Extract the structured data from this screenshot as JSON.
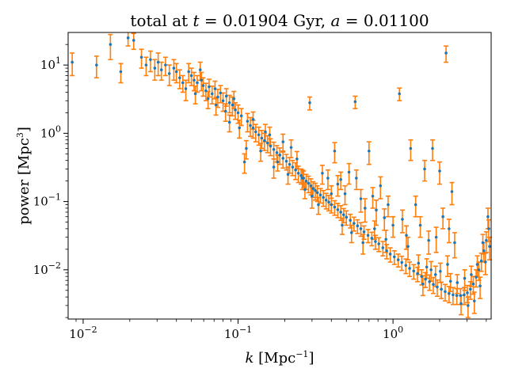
{
  "chart_data": {
    "type": "scatter",
    "title": "total at t = 0.01904 Gyr, a = 0.01100",
    "title_parts": {
      "prefix": "total at ",
      "t_sym": "t",
      "t_val": " = 0.01904 Gyr, ",
      "a_sym": "a",
      "a_val": " = 0.01100"
    },
    "xlabel": {
      "sym": "k",
      "unit": " [Mpc",
      "exp": "−1",
      "close": "]"
    },
    "ylabel": {
      "text": "power [Mpc",
      "exp": "3",
      "close": "]"
    },
    "x_scale": "log",
    "y_scale": "log",
    "xlim": [
      0.008,
      4.3
    ],
    "ylim": [
      0.0019,
      30
    ],
    "x_ticks": [
      {
        "value": 0.01,
        "base": "10",
        "exp": "−2"
      },
      {
        "value": 0.1,
        "base": "10",
        "exp": "−1"
      },
      {
        "value": 1,
        "base": "10",
        "exp": "0"
      }
    ],
    "y_ticks": [
      {
        "value": 0.01,
        "base": "10",
        "exp": "−2"
      },
      {
        "value": 0.1,
        "base": "10",
        "exp": "−1"
      },
      {
        "value": 1,
        "base": "10",
        "exp": "0"
      },
      {
        "value": 10,
        "base": "10",
        "exp": "1"
      }
    ],
    "grid": false,
    "colors": {
      "points": "#1f77b4",
      "errorbars": "#ff7f0e",
      "axes": "#000000"
    },
    "series": [
      {
        "points": [
          [
            0.0085,
            11.0,
            4.0
          ],
          [
            0.0122,
            10.0,
            3.5
          ],
          [
            0.015,
            20.0,
            8.0
          ],
          [
            0.0175,
            8.0,
            2.5
          ],
          [
            0.0195,
            25.0,
            6.0
          ],
          [
            0.0212,
            23.0,
            6.0
          ],
          [
            0.0238,
            13.0,
            4.0
          ],
          [
            0.0255,
            10.0,
            3.0
          ],
          [
            0.0272,
            12.0,
            4.0
          ],
          [
            0.029,
            9.0,
            3.0
          ],
          [
            0.0305,
            11.0,
            4.0
          ],
          [
            0.032,
            8.5,
            2.5
          ],
          [
            0.034,
            10.0,
            3.0
          ],
          [
            0.036,
            7.5,
            2.5
          ],
          [
            0.0385,
            9.0,
            3.0
          ],
          [
            0.04,
            8.0,
            2.5
          ],
          [
            0.042,
            6.5,
            2.0
          ],
          [
            0.044,
            5.5,
            1.5
          ],
          [
            0.046,
            4.5,
            1.5
          ],
          [
            0.048,
            8.0,
            2.5
          ],
          [
            0.05,
            7.0,
            2.0
          ],
          [
            0.052,
            6.0,
            1.8
          ],
          [
            0.0545,
            5.5,
            1.5
          ],
          [
            0.057,
            8.5,
            2.5
          ],
          [
            0.0595,
            5.0,
            1.5
          ],
          [
            0.062,
            4.2,
            1.2
          ],
          [
            0.065,
            4.8,
            1.4
          ],
          [
            0.068,
            3.8,
            1.1
          ],
          [
            0.071,
            4.5,
            1.3
          ],
          [
            0.074,
            3.4,
            1.0
          ],
          [
            0.077,
            3.9,
            1.1
          ],
          [
            0.08,
            3.0,
            0.9
          ],
          [
            0.084,
            3.5,
            1.0
          ],
          [
            0.088,
            2.8,
            0.8
          ],
          [
            0.092,
            2.6,
            0.8
          ],
          [
            0.096,
            2.2,
            0.6
          ],
          [
            0.1,
            2.0,
            0.6
          ],
          [
            0.105,
            1.8,
            0.5
          ],
          [
            0.11,
            0.38,
            0.12
          ],
          [
            0.115,
            1.5,
            0.45
          ],
          [
            0.12,
            1.3,
            0.4
          ],
          [
            0.125,
            1.2,
            0.35
          ],
          [
            0.13,
            1.05,
            0.3
          ],
          [
            0.136,
            0.95,
            0.28
          ],
          [
            0.142,
            0.85,
            0.25
          ],
          [
            0.148,
            0.78,
            0.22
          ],
          [
            0.155,
            0.72,
            0.2
          ],
          [
            0.162,
            0.65,
            0.18
          ],
          [
            0.17,
            0.58,
            0.16
          ],
          [
            0.178,
            0.52,
            0.14
          ],
          [
            0.186,
            0.48,
            0.13
          ],
          [
            0.195,
            0.43,
            0.12
          ],
          [
            0.205,
            0.39,
            0.1
          ],
          [
            0.215,
            0.35,
            0.09
          ],
          [
            0.225,
            0.32,
            0.08
          ],
          [
            0.235,
            0.29,
            0.08
          ],
          [
            0.245,
            0.26,
            0.07
          ],
          [
            0.255,
            0.24,
            0.06
          ],
          [
            0.265,
            0.22,
            0.06
          ],
          [
            0.275,
            0.2,
            0.05
          ],
          [
            0.285,
            0.185,
            0.05
          ],
          [
            0.295,
            0.17,
            0.045
          ],
          [
            0.305,
            0.155,
            0.04
          ],
          [
            0.315,
            0.145,
            0.04
          ],
          [
            0.325,
            0.135,
            0.035
          ],
          [
            0.34,
            0.125,
            0.03
          ],
          [
            0.355,
            0.115,
            0.03
          ],
          [
            0.37,
            0.105,
            0.027
          ],
          [
            0.385,
            0.098,
            0.025
          ],
          [
            0.4,
            0.09,
            0.022
          ],
          [
            0.42,
            0.083,
            0.02
          ],
          [
            0.44,
            0.076,
            0.018
          ],
          [
            0.46,
            0.07,
            0.017
          ],
          [
            0.48,
            0.064,
            0.015
          ],
          [
            0.5,
            0.059,
            0.014
          ],
          [
            0.53,
            0.053,
            0.012
          ],
          [
            0.56,
            0.048,
            0.011
          ],
          [
            0.59,
            0.044,
            0.01
          ],
          [
            0.62,
            0.04,
            0.009
          ],
          [
            0.65,
            0.036,
            0.008
          ],
          [
            0.69,
            0.032,
            0.007
          ],
          [
            0.73,
            0.029,
            0.0065
          ],
          [
            0.77,
            0.026,
            0.006
          ],
          [
            0.81,
            0.024,
            0.0055
          ],
          [
            0.86,
            0.021,
            0.005
          ],
          [
            0.91,
            0.019,
            0.0045
          ],
          [
            0.96,
            0.017,
            0.004
          ],
          [
            1.02,
            0.0155,
            0.0035
          ],
          [
            1.08,
            0.014,
            0.003
          ],
          [
            1.14,
            0.0128,
            0.003
          ],
          [
            1.21,
            0.0116,
            0.0028
          ],
          [
            1.28,
            0.0105,
            0.0025
          ],
          [
            1.36,
            0.0096,
            0.0023
          ],
          [
            1.44,
            0.0088,
            0.0021
          ],
          [
            1.53,
            0.008,
            0.002
          ],
          [
            1.62,
            0.0073,
            0.0018
          ],
          [
            1.72,
            0.0067,
            0.0017
          ],
          [
            1.82,
            0.0061,
            0.0016
          ],
          [
            1.93,
            0.0056,
            0.0015
          ],
          [
            2.05,
            0.0052,
            0.0014
          ],
          [
            2.17,
            0.0048,
            0.0013
          ],
          [
            2.3,
            0.0045,
            0.0012
          ],
          [
            2.44,
            0.0043,
            0.0012
          ],
          [
            2.58,
            0.0042,
            0.0011
          ],
          [
            2.73,
            0.0042,
            0.0011
          ],
          [
            2.88,
            0.0043,
            0.0012
          ],
          [
            3.02,
            0.0046,
            0.0013
          ],
          [
            3.16,
            0.0052,
            0.0015
          ],
          [
            3.3,
            0.0062,
            0.0018
          ],
          [
            3.44,
            0.0078,
            0.0022
          ],
          [
            3.58,
            0.01,
            0.003
          ],
          [
            3.72,
            0.0135,
            0.004
          ],
          [
            3.86,
            0.019,
            0.006
          ],
          [
            4.0,
            0.027,
            0.009
          ],
          [
            4.15,
            0.04,
            0.014
          ],
          [
            0.088,
            1.45,
            0.4
          ],
          [
            0.102,
            1.2,
            0.35
          ],
          [
            0.15,
            1.05,
            0.3
          ],
          [
            0.17,
            0.32,
            0.1
          ],
          [
            0.195,
            0.75,
            0.22
          ],
          [
            0.22,
            0.62,
            0.18
          ],
          [
            0.26,
            0.22,
            0.07
          ],
          [
            0.29,
            2.8,
            0.6
          ],
          [
            0.3,
            0.12,
            0.04
          ],
          [
            0.35,
            0.26,
            0.08
          ],
          [
            0.38,
            0.22,
            0.07
          ],
          [
            0.42,
            0.55,
            0.18
          ],
          [
            0.44,
            0.18,
            0.06
          ],
          [
            0.46,
            0.21,
            0.06
          ],
          [
            0.49,
            0.13,
            0.04
          ],
          [
            0.52,
            0.27,
            0.09
          ],
          [
            0.57,
            2.9,
            0.6
          ],
          [
            0.58,
            0.22,
            0.07
          ],
          [
            0.62,
            0.11,
            0.04
          ],
          [
            0.66,
            0.08,
            0.03
          ],
          [
            0.7,
            0.55,
            0.2
          ],
          [
            0.74,
            0.12,
            0.04
          ],
          [
            0.78,
            0.075,
            0.03
          ],
          [
            0.83,
            0.17,
            0.06
          ],
          [
            0.88,
            0.058,
            0.02
          ],
          [
            0.93,
            0.09,
            0.03
          ],
          [
            1.0,
            0.045,
            0.015
          ],
          [
            1.1,
            3.8,
            0.8
          ],
          [
            1.15,
            0.055,
            0.02
          ],
          [
            1.22,
            0.032,
            0.012
          ],
          [
            1.3,
            0.6,
            0.2
          ],
          [
            1.4,
            0.09,
            0.03
          ],
          [
            1.5,
            0.045,
            0.015
          ],
          [
            1.6,
            0.3,
            0.1
          ],
          [
            1.7,
            0.027,
            0.01
          ],
          [
            1.8,
            0.6,
            0.2
          ],
          [
            1.9,
            0.03,
            0.012
          ],
          [
            2.0,
            0.28,
            0.1
          ],
          [
            2.1,
            0.06,
            0.02
          ],
          [
            2.2,
            15.0,
            4.0
          ],
          [
            2.3,
            0.04,
            0.015
          ],
          [
            2.4,
            0.14,
            0.05
          ],
          [
            2.5,
            0.025,
            0.01
          ],
          [
            1.25,
            0.022,
            0.008
          ],
          [
            0.9,
            0.028,
            0.01
          ],
          [
            0.76,
            0.04,
            0.012
          ],
          [
            0.64,
            0.025,
            0.008
          ],
          [
            0.54,
            0.035,
            0.01
          ],
          [
            0.47,
            0.045,
            0.012
          ],
          [
            0.4,
            0.13,
            0.04
          ],
          [
            0.33,
            0.09,
            0.025
          ],
          [
            0.27,
            0.15,
            0.04
          ],
          [
            0.24,
            0.42,
            0.12
          ],
          [
            0.21,
            0.25,
            0.07
          ],
          [
            0.18,
            0.38,
            0.1
          ],
          [
            0.16,
            0.95,
            0.28
          ],
          [
            0.14,
            0.55,
            0.16
          ],
          [
            0.125,
            1.6,
            0.45
          ],
          [
            0.113,
            0.6,
            0.18
          ],
          [
            0.094,
            3.2,
            0.9
          ],
          [
            0.083,
            2.1,
            0.6
          ],
          [
            0.072,
            2.6,
            0.75
          ],
          [
            0.064,
            3.2,
            0.9
          ],
          [
            0.058,
            6.0,
            1.8
          ],
          [
            0.053,
            3.8,
            1.1
          ],
          [
            2.6,
            0.0065,
            0.002
          ],
          [
            2.75,
            0.0032,
            0.001
          ],
          [
            2.9,
            0.0075,
            0.0025
          ],
          [
            3.05,
            0.003,
            0.001
          ],
          [
            3.2,
            0.0085,
            0.0028
          ],
          [
            3.35,
            0.0035,
            0.0012
          ],
          [
            3.5,
            0.012,
            0.004
          ],
          [
            3.65,
            0.0058,
            0.002
          ],
          [
            3.8,
            0.025,
            0.008
          ],
          [
            3.95,
            0.013,
            0.0045
          ],
          [
            4.1,
            0.06,
            0.02
          ],
          [
            4.2,
            0.022,
            0.008
          ],
          [
            2.25,
            0.012,
            0.004
          ],
          [
            2.35,
            0.0068,
            0.002
          ],
          [
            2.02,
            0.0095,
            0.003
          ],
          [
            1.88,
            0.0085,
            0.0028
          ],
          [
            1.76,
            0.01,
            0.0032
          ],
          [
            1.65,
            0.011,
            0.0035
          ],
          [
            1.56,
            0.0062,
            0.002
          ],
          [
            1.46,
            0.0125,
            0.004
          ]
        ]
      }
    ]
  }
}
